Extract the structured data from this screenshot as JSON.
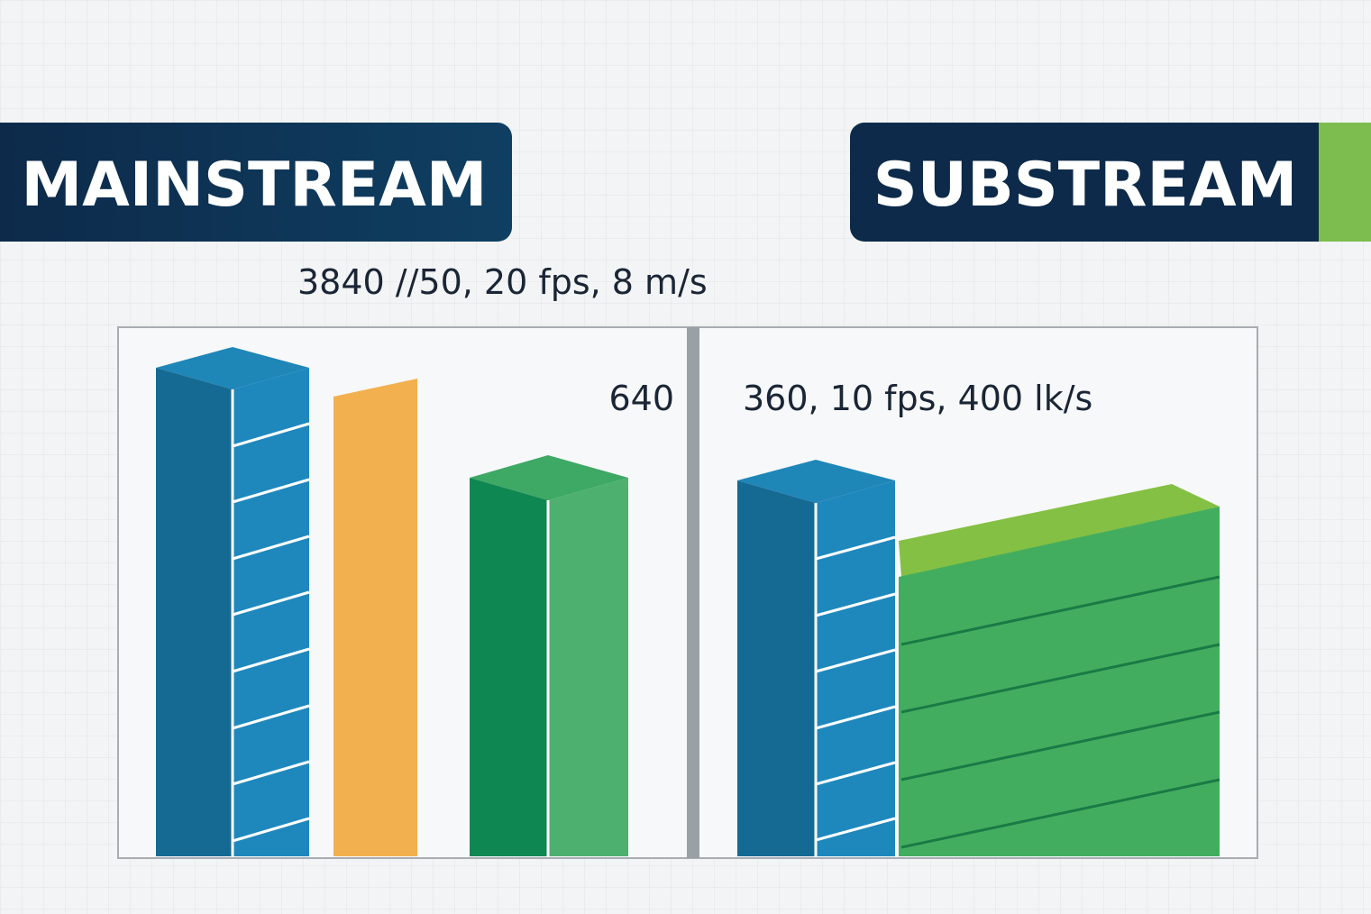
{
  "headings": {
    "mainstream": "MAINSTREAM",
    "substream": "SUBSTREAM"
  },
  "labels": {
    "mainstream_spec": "3840 //50, 20 fps, 8 m/s",
    "mainstream_extra": "640",
    "substream_spec": "360, 10 fps, 400 lk/s"
  }
}
